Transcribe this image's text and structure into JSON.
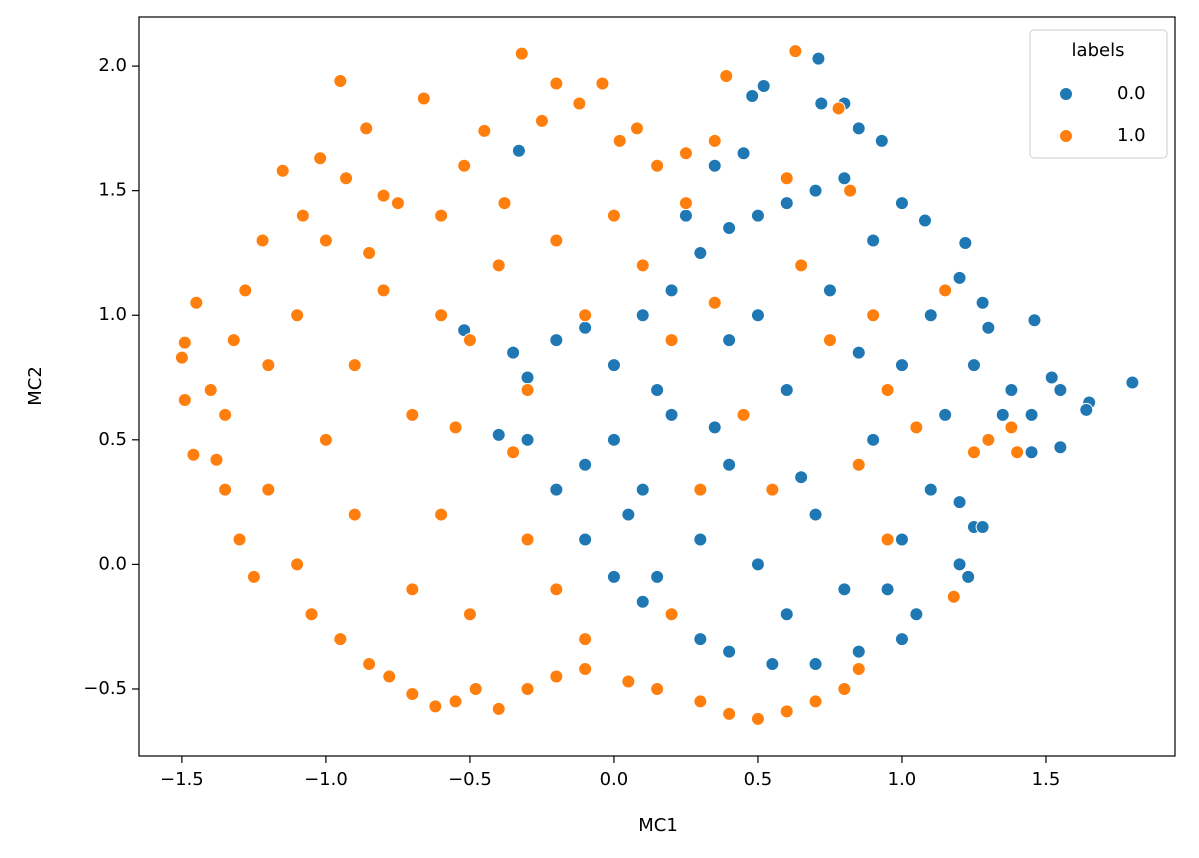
{
  "chart_data": {
    "type": "scatter",
    "x_label": "MC1",
    "y_label": "MC2",
    "xlim": [
      -1.649,
      1.948
    ],
    "ylim": [
      -0.769,
      2.197
    ],
    "xticks": [
      {
        "value": -1.5,
        "label": "−1.5"
      },
      {
        "value": -1.0,
        "label": "−1.0"
      },
      {
        "value": -0.5,
        "label": "−0.5"
      },
      {
        "value": 0,
        "label": "0.0"
      },
      {
        "value": 0.5,
        "label": "0.5"
      },
      {
        "value": 1.0,
        "label": "1.0"
      },
      {
        "value": 1.5,
        "label": "1.5"
      }
    ],
    "yticks": [
      {
        "value": -0.5,
        "label": "−0.5"
      },
      {
        "value": 0,
        "label": "0.0"
      },
      {
        "value": 0.5,
        "label": "0.5"
      },
      {
        "value": 1.0,
        "label": "1.0"
      },
      {
        "value": 1.5,
        "label": "1.5"
      },
      {
        "value": 2.0,
        "label": "2.0"
      }
    ],
    "grid": false,
    "legend_title": "labels",
    "legend_position": "upper right",
    "series": [
      {
        "name": "0.0",
        "color": "#1f77b4",
        "x": [
          0.71,
          0.52,
          0.48,
          0.72,
          0.8,
          -0.33,
          0.85,
          0.93,
          1.0,
          1.08,
          1.22,
          1.2,
          1.28,
          1.3,
          1.46,
          1.52,
          1.55,
          1.65,
          1.64,
          1.8,
          1.45,
          1.55,
          1.35,
          1.25,
          1.2,
          1.25,
          1.28,
          1.2,
          1.23,
          1.0,
          0.85,
          0.7,
          0.55,
          0.4,
          0.3,
          0.2,
          0.1,
          0.0,
          -0.1,
          -0.2,
          -0.3,
          -0.4,
          -0.52,
          -0.35,
          -0.3,
          -0.2,
          -0.1,
          0.0,
          0.1,
          0.2,
          0.3,
          0.4,
          0.5,
          0.6,
          0.7,
          0.8,
          0.9,
          0.25,
          0.35,
          0.45,
          0.0,
          0.1,
          0.2,
          0.3,
          0.4,
          0.5,
          0.6,
          0.7,
          0.8,
          0.9,
          1.0,
          1.1,
          1.0,
          0.6,
          0.4,
          0.5,
          0.75,
          0.85,
          1.1,
          1.15,
          -0.1,
          0.05,
          0.15,
          0.35,
          0.65,
          0.95,
          1.05,
          0.15,
          1.45,
          1.38
        ],
        "values": [
          2.03,
          1.92,
          1.88,
          1.85,
          1.85,
          1.66,
          1.75,
          1.7,
          1.45,
          1.38,
          1.29,
          1.15,
          1.05,
          0.95,
          0.98,
          0.75,
          0.7,
          0.65,
          0.62,
          0.73,
          0.45,
          0.47,
          0.6,
          0.8,
          0.25,
          0.15,
          0.15,
          0.0,
          -0.05,
          -0.3,
          -0.35,
          -0.4,
          -0.4,
          -0.35,
          -0.3,
          -0.2,
          -0.15,
          -0.05,
          0.1,
          0.3,
          0.5,
          0.52,
          0.94,
          0.85,
          0.75,
          0.9,
          0.95,
          0.8,
          1.0,
          1.1,
          1.25,
          1.35,
          1.4,
          1.45,
          1.5,
          1.55,
          1.3,
          1.4,
          1.6,
          1.65,
          0.5,
          0.3,
          0.6,
          0.1,
          0.4,
          0.0,
          0.7,
          0.2,
          -0.1,
          0.5,
          0.8,
          0.3,
          0.1,
          -0.2,
          0.9,
          1.0,
          1.1,
          0.85,
          1.0,
          0.6,
          0.4,
          0.2,
          0.7,
          0.55,
          0.35,
          -0.1,
          -0.2,
          -0.05,
          0.6,
          0.7
        ]
      },
      {
        "name": "1.0",
        "color": "#ff7f0e",
        "x": [
          -1.49,
          -1.5,
          -1.49,
          -1.45,
          -1.46,
          -1.38,
          -1.35,
          -1.32,
          -1.28,
          -1.22,
          -1.15,
          -1.08,
          -1.02,
          -0.95,
          -0.93,
          -0.86,
          -0.8,
          -0.75,
          -0.66,
          -0.6,
          -0.52,
          -0.45,
          -0.38,
          -0.32,
          -0.25,
          -0.2,
          -0.12,
          -0.04,
          0.02,
          0.08,
          0.15,
          0.25,
          0.35,
          0.39,
          0.63,
          0.78,
          -1.3,
          -1.25,
          -1.2,
          -1.1,
          -1.05,
          -0.95,
          -0.9,
          -0.85,
          -0.78,
          -0.7,
          -0.62,
          -0.55,
          -0.48,
          -0.4,
          -0.3,
          -0.2,
          -0.1,
          0.05,
          0.15,
          0.3,
          0.4,
          0.5,
          0.6,
          0.7,
          0.8,
          0.85,
          -1.2,
          -1.1,
          -1.0,
          -0.9,
          -0.8,
          -0.7,
          -0.6,
          -0.5,
          -0.4,
          -0.3,
          -0.2,
          -0.1,
          0.0,
          0.1,
          -0.7,
          -0.5,
          -0.3,
          -0.2,
          -0.1,
          -1.0,
          -0.85,
          -0.6,
          -0.35,
          0.2,
          0.35,
          0.45,
          0.55,
          0.65,
          0.75,
          0.85,
          0.95,
          1.05,
          1.15,
          1.25,
          1.3,
          1.38,
          1.4,
          1.18,
          0.95,
          0.82,
          0.6,
          0.3,
          0.2,
          -1.4,
          -1.35,
          -0.55,
          0.25,
          0.9
        ],
        "values": [
          0.66,
          0.83,
          0.89,
          1.05,
          0.44,
          0.42,
          0.6,
          0.9,
          1.1,
          1.3,
          1.58,
          1.4,
          1.63,
          1.94,
          1.55,
          1.75,
          1.48,
          1.45,
          1.87,
          1.4,
          1.6,
          1.74,
          1.45,
          2.05,
          1.78,
          1.93,
          1.85,
          1.93,
          1.7,
          1.75,
          1.6,
          1.65,
          1.7,
          1.96,
          2.06,
          1.83,
          0.1,
          -0.05,
          0.3,
          0.0,
          -0.2,
          -0.3,
          0.2,
          -0.4,
          -0.45,
          -0.52,
          -0.57,
          -0.55,
          -0.5,
          -0.58,
          -0.5,
          -0.45,
          -0.42,
          -0.47,
          -0.5,
          -0.55,
          -0.6,
          -0.62,
          -0.59,
          -0.55,
          -0.5,
          -0.42,
          0.8,
          1.0,
          0.5,
          0.8,
          1.1,
          0.6,
          0.2,
          0.9,
          1.2,
          0.7,
          1.3,
          1.0,
          1.4,
          1.2,
          -0.1,
          -0.2,
          0.1,
          -0.1,
          -0.3,
          1.3,
          1.25,
          1.0,
          0.45,
          0.9,
          1.05,
          0.6,
          0.3,
          1.2,
          0.9,
          0.4,
          0.7,
          0.55,
          1.1,
          0.45,
          0.5,
          0.55,
          0.45,
          -0.13,
          0.1,
          1.5,
          1.55,
          0.3,
          -0.2,
          0.7,
          0.3,
          0.55,
          1.45,
          1.0
        ]
      }
    ]
  }
}
